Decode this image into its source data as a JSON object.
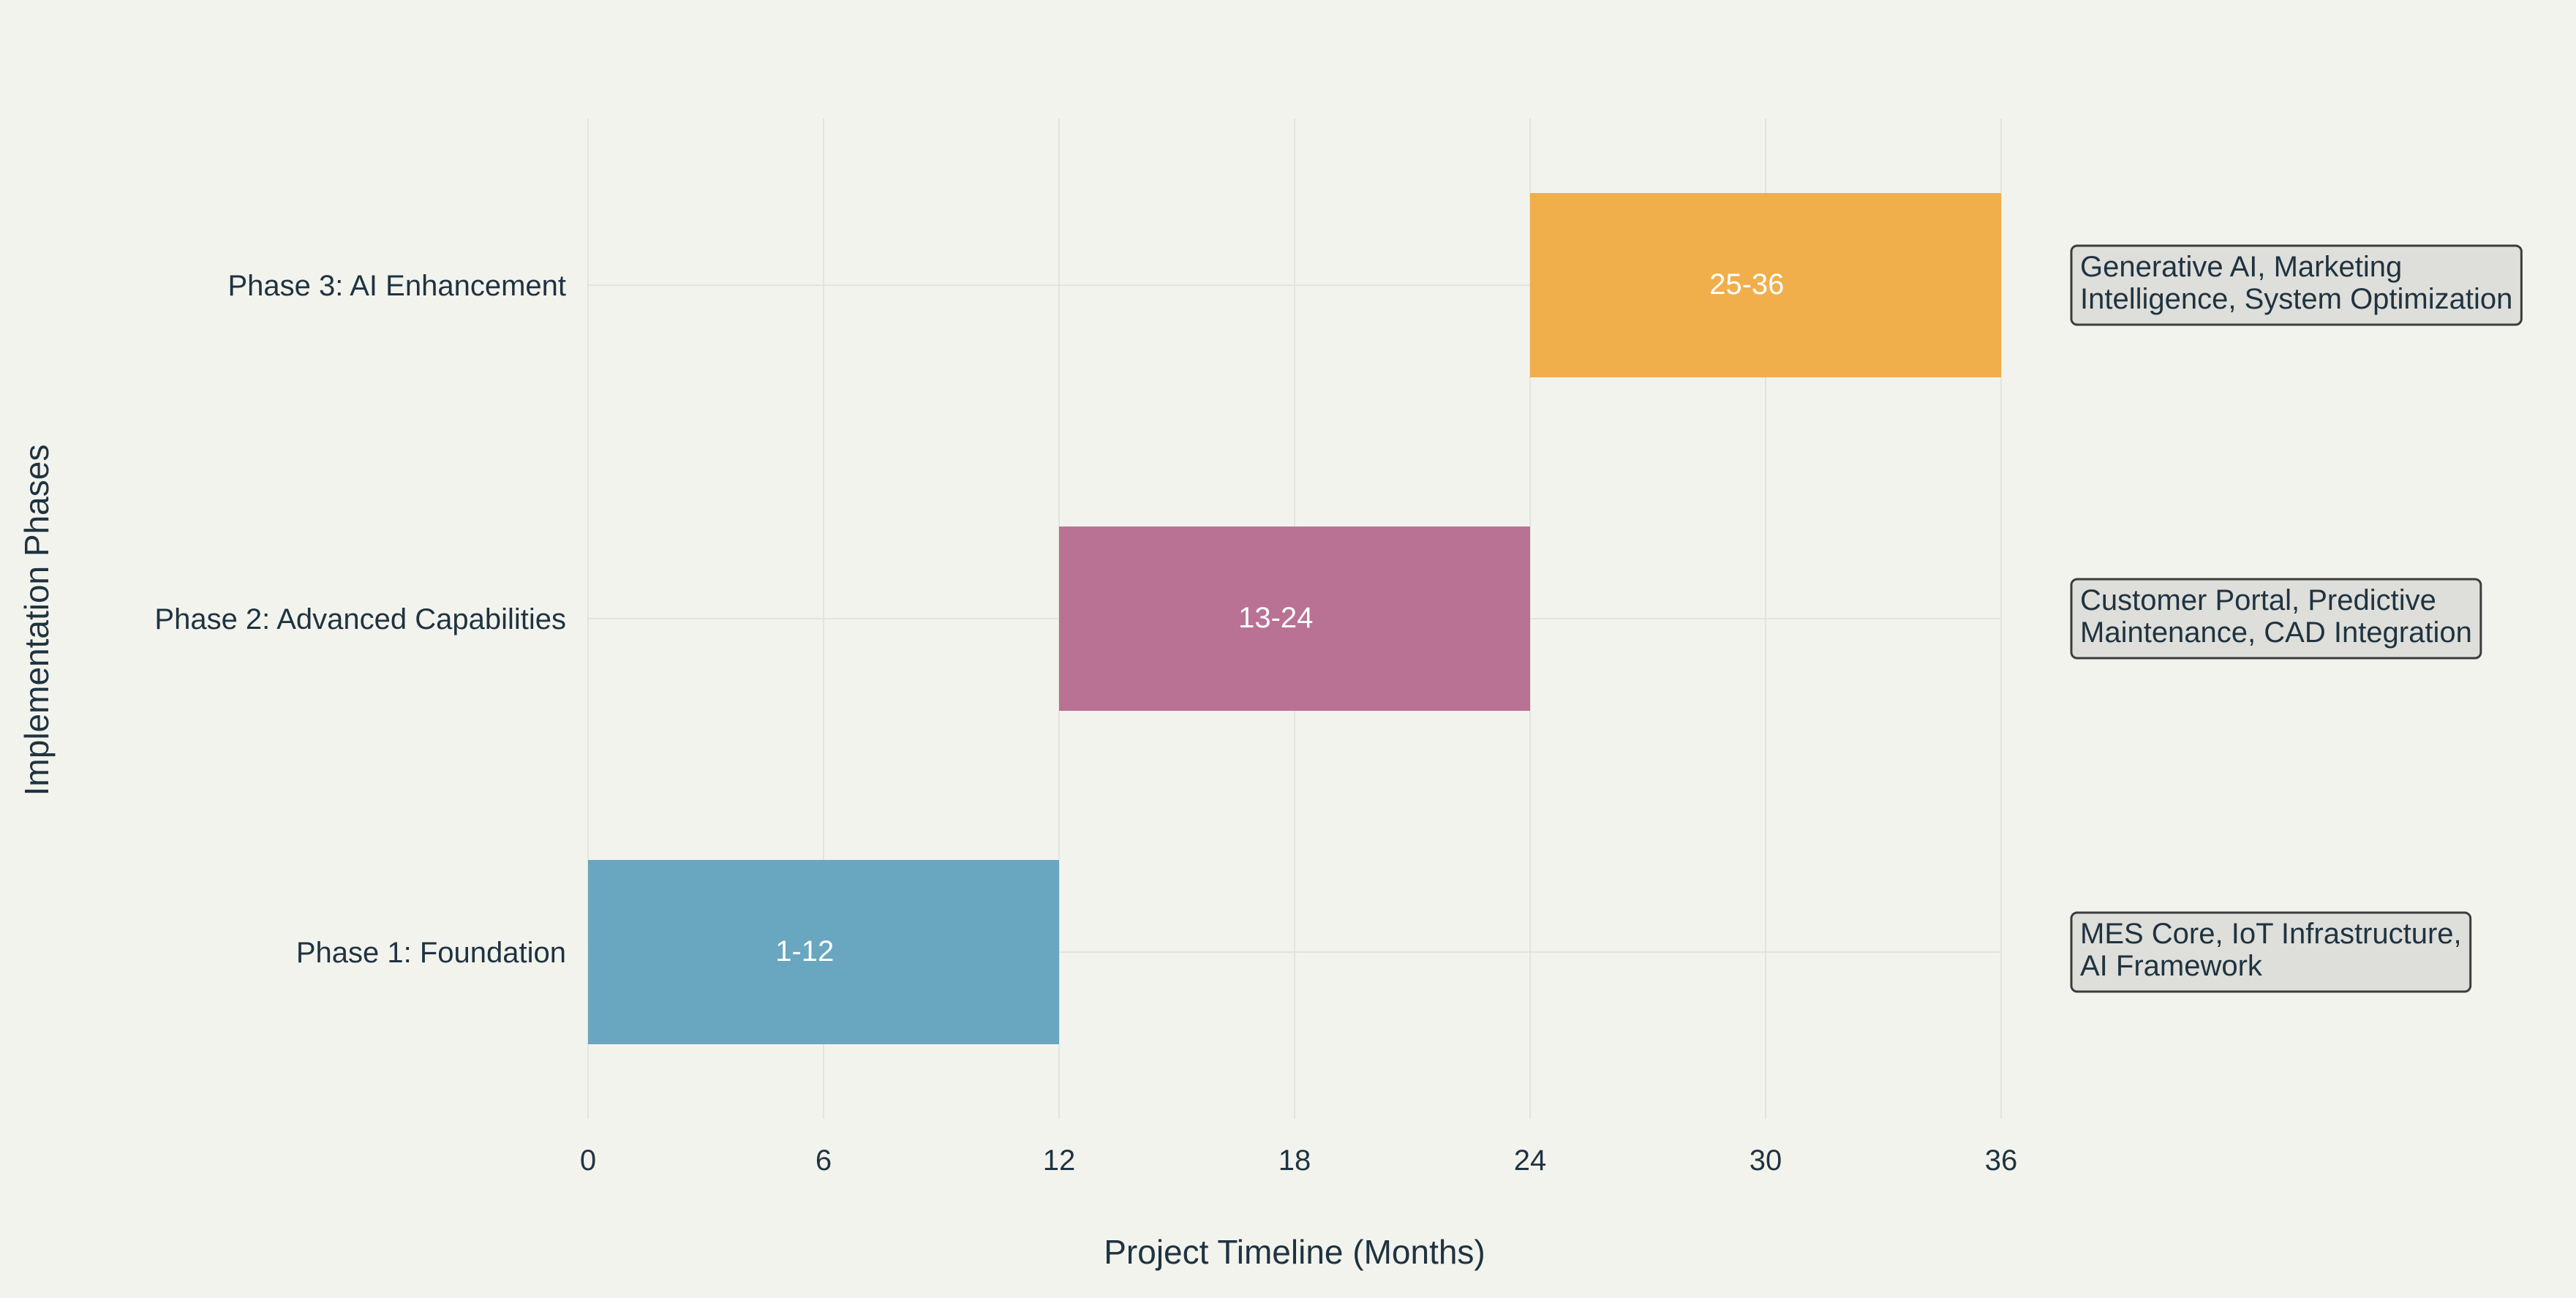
{
  "chart_data": {
    "type": "bar",
    "orientation": "horizontal",
    "title": "",
    "xlabel": "Project Timeline (Months)",
    "ylabel": "Implementation Phases",
    "xlim": [
      0,
      36
    ],
    "xticks": [
      0,
      6,
      12,
      18,
      24,
      30,
      36
    ],
    "grid": true,
    "legend": "none",
    "bars": [
      {
        "category": "Phase 1: Foundation",
        "start": 0,
        "end": 12,
        "label": "1-12",
        "color": "#5d9fbb",
        "note": [
          "MES Core, IoT Infrastructure,",
          "AI Framework"
        ]
      },
      {
        "category": "Phase 2: Advanced Capabilities",
        "start": 12,
        "end": 24,
        "label": "13-24",
        "color": "#b4668c",
        "note": [
          "Customer Portal, Predictive",
          "Maintenance, CAD Integration"
        ]
      },
      {
        "category": "Phase 3: AI Enhancement",
        "start": 24,
        "end": 36,
        "label": "25-36",
        "color": "#f0a93d",
        "note": [
          "Generative AI, Marketing",
          "Intelligence, System Optimization"
        ]
      }
    ]
  }
}
